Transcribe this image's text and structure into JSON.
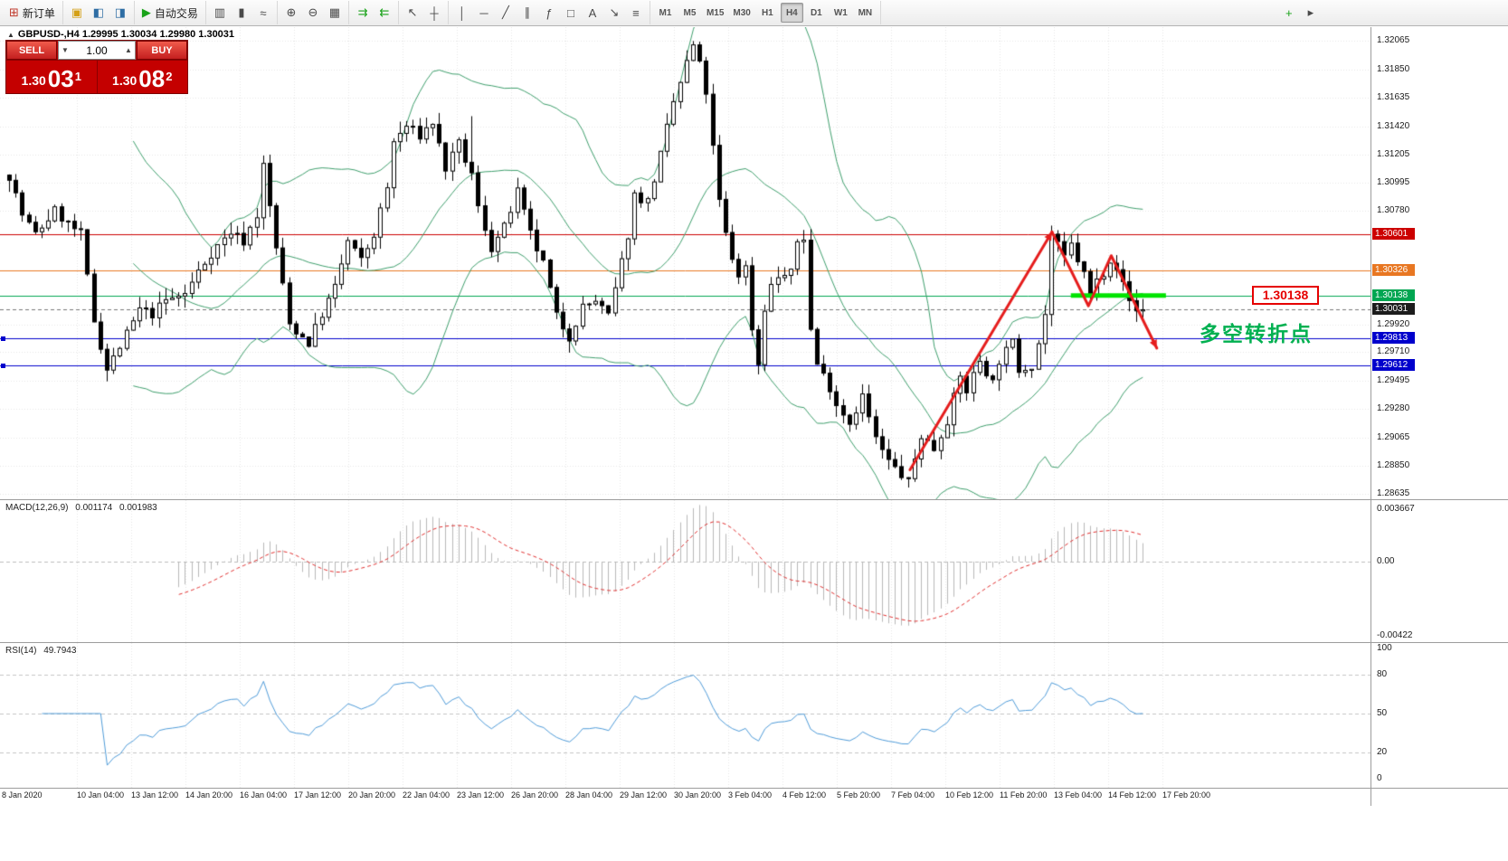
{
  "icons": {
    "collapse": "▲",
    "volume_up": "▲",
    "volume_down": "▼"
  },
  "toolbar": {
    "groups": [
      {
        "name": "group-trade",
        "items": [
          {
            "name": "new-order-button",
            "glyph": "⊞",
            "glyph_color": "#c0392b",
            "label": "新订单"
          }
        ]
      },
      {
        "name": "group-panels",
        "items": [
          {
            "name": "metaeditor-button",
            "glyph": "▣",
            "glyph_color": "#d4a017"
          },
          {
            "name": "market-watch-button",
            "glyph": "◧",
            "glyph_color": "#2e6da4"
          },
          {
            "name": "data-window-button",
            "glyph": "◨",
            "glyph_color": "#2e6da4"
          }
        ]
      },
      {
        "name": "group-autotrading",
        "items": [
          {
            "name": "autotrading-button",
            "glyph": "▶",
            "glyph_color": "#1aa31a",
            "label": "自动交易"
          }
        ]
      },
      {
        "name": "group-chart-type",
        "items": [
          {
            "name": "bar-chart-button",
            "glyph": "▥"
          },
          {
            "name": "candlestick-chart-button",
            "glyph": "▮"
          },
          {
            "name": "line-chart-button",
            "glyph": "≈"
          }
        ]
      },
      {
        "name": "group-zoom",
        "items": [
          {
            "name": "zoom-in-button",
            "glyph": "⊕"
          },
          {
            "name": "zoom-out-button",
            "glyph": "⊖"
          },
          {
            "name": "tile-windows-button",
            "glyph": "▦"
          }
        ]
      },
      {
        "name": "group-scroll",
        "items": [
          {
            "name": "auto-scroll-button",
            "glyph": "⇉",
            "glyph_color": "#1aa31a"
          },
          {
            "name": "chart-shift-button",
            "glyph": "⇇",
            "glyph_color": "#1aa31a"
          }
        ]
      },
      {
        "name": "group-cursor",
        "items": [
          {
            "name": "cursor-button",
            "glyph": "↖"
          },
          {
            "name": "crosshair-button",
            "glyph": "┼"
          }
        ]
      },
      {
        "name": "group-objects",
        "items": [
          {
            "name": "vertical-line-button",
            "glyph": "│"
          },
          {
            "name": "horizontal-line-button",
            "glyph": "─"
          },
          {
            "name": "trendline-button",
            "glyph": "╱"
          },
          {
            "name": "channel-button",
            "glyph": "∥"
          },
          {
            "name": "fibonacci-button",
            "glyph": "ƒ"
          },
          {
            "name": "shapes-button",
            "glyph": "□"
          },
          {
            "name": "text-button",
            "glyph": "A"
          },
          {
            "name": "arrows-button",
            "glyph": "↘"
          },
          {
            "name": "indicators-list-button",
            "glyph": "≡"
          }
        ]
      },
      {
        "name": "group-timeframes",
        "items": [
          {
            "name": "timeframe-m1-button",
            "label": "M1",
            "small": true
          },
          {
            "name": "timeframe-m5-button",
            "label": "M5",
            "small": true
          },
          {
            "name": "timeframe-m15-button",
            "label": "M15",
            "small": true
          },
          {
            "name": "timeframe-m30-button",
            "label": "M30",
            "small": true
          },
          {
            "name": "timeframe-h1-button",
            "label": "H1",
            "small": true
          },
          {
            "name": "timeframe-h4-button",
            "label": "H4",
            "small": true,
            "active": true
          },
          {
            "name": "timeframe-d1-button",
            "label": "D1",
            "small": true
          },
          {
            "name": "timeframe-w1-button",
            "label": "W1",
            "small": true
          },
          {
            "name": "timeframe-mn-button",
            "label": "MN",
            "small": true
          }
        ]
      },
      {
        "name": "group-right",
        "spacer": true,
        "items": [
          {
            "name": "add-toolbar-button",
            "glyph": "+",
            "glyph_color": "#1aa31a"
          },
          {
            "name": "toolbar-more-button",
            "glyph": "▸"
          }
        ]
      }
    ]
  },
  "chart": {
    "header": "GBPUSD-,H4  1.29995 1.30034 1.29980 1.30031"
  },
  "one_click": {
    "sell_label": "SELL",
    "buy_label": "BUY",
    "volume": "1.00",
    "sell": {
      "main": "1.30",
      "pips": "03",
      "sup": "1"
    },
    "buy": {
      "main": "1.30",
      "pips": "08",
      "sup": "2"
    }
  },
  "annotations": {
    "turning_point_text": "多空转折点",
    "price_callout": "1.30138"
  },
  "chart_data": {
    "type": "candlestick",
    "symbol": "GBPUSD-",
    "timeframe": "H4",
    "ohlc": {
      "open": 1.29995,
      "high": 1.30034,
      "low": 1.2998,
      "close": 1.30031
    },
    "bars": 175,
    "y_axis": {
      "top_price": 1.3217,
      "bottom_price": 1.2859,
      "ticks": [
        1.32065,
        1.3185,
        1.31635,
        1.3142,
        1.31205,
        1.30995,
        1.3078,
        1.2992,
        1.2971,
        1.29495,
        1.2928,
        1.29065,
        1.2885,
        1.28635
      ]
    },
    "levels": [
      {
        "name": "resistance-line",
        "price": 1.30601,
        "color": "#cc0000",
        "label_bg": "#cc0000",
        "style": "solid"
      },
      {
        "name": "pivot-line",
        "price": 1.30326,
        "color": "#e87722",
        "label_bg": "#e87722",
        "style": "solid"
      },
      {
        "name": "support-line",
        "price": 1.30138,
        "color": "#00a651",
        "label_bg": "#00a651",
        "style": "solid"
      },
      {
        "name": "bid-line",
        "price": 1.30031,
        "color": "#777777",
        "label_bg": "#1c1c1c",
        "style": "dashed"
      },
      {
        "name": "blue-line-upper",
        "price": 1.29813,
        "color": "#0000cc",
        "label_bg": "#0000cc",
        "style": "solid"
      },
      {
        "name": "blue-line-lower",
        "price": 1.29612,
        "color": "#0000cc",
        "label_bg": "#0000cc",
        "style": "solid"
      }
    ],
    "x_labels": [
      "8 Jan 2020",
      "10 Jan 04:00",
      "13 Jan 12:00",
      "14 Jan 20:00",
      "16 Jan 04:00",
      "17 Jan 12:00",
      "20 Jan 20:00",
      "22 Jan 04:00",
      "23 Jan 12:00",
      "26 Jan 20:00",
      "28 Jan 04:00",
      "29 Jan 12:00",
      "30 Jan 20:00",
      "3 Feb 04:00",
      "4 Feb 12:00",
      "5 Feb 20:00",
      "7 Feb 04:00",
      "10 Feb 12:00",
      "11 Feb 20:00",
      "13 Feb 04:00",
      "14 Feb 12:00",
      "17 Feb 20:00"
    ],
    "price_path": [
      [
        0,
        1.3105
      ],
      [
        2,
        1.3075
      ],
      [
        4,
        1.306
      ],
      [
        7,
        1.3078
      ],
      [
        9,
        1.3068
      ],
      [
        11,
        1.306
      ],
      [
        13,
        1.2995
      ],
      [
        15,
        1.2958
      ],
      [
        17,
        1.2975
      ],
      [
        20,
        1.3003
      ],
      [
        22,
        1.3
      ],
      [
        24,
        1.301
      ],
      [
        27,
        1.3015
      ],
      [
        29,
        1.3032
      ],
      [
        31,
        1.3046
      ],
      [
        34,
        1.3062
      ],
      [
        36,
        1.3055
      ],
      [
        38,
        1.3075
      ],
      [
        39,
        1.3112
      ],
      [
        41,
        1.305
      ],
      [
        43,
        1.2992
      ],
      [
        46,
        1.2978
      ],
      [
        48,
        1.3
      ],
      [
        50,
        1.302
      ],
      [
        52,
        1.3055
      ],
      [
        54,
        1.304
      ],
      [
        56,
        1.306
      ],
      [
        58,
        1.3095
      ],
      [
        59,
        1.313
      ],
      [
        61,
        1.3142
      ],
      [
        63,
        1.3135
      ],
      [
        65,
        1.3145
      ],
      [
        67,
        1.311
      ],
      [
        69,
        1.3128
      ],
      [
        71,
        1.3105
      ],
      [
        72,
        1.308
      ],
      [
        74,
        1.305
      ],
      [
        76,
        1.3065
      ],
      [
        78,
        1.3092
      ],
      [
        80,
        1.306
      ],
      [
        82,
        1.3038
      ],
      [
        84,
        1.2998
      ],
      [
        86,
        1.2983
      ],
      [
        88,
        1.3005
      ],
      [
        90,
        1.301
      ],
      [
        92,
        1.2998
      ],
      [
        93,
        1.3018
      ],
      [
        95,
        1.306
      ],
      [
        96,
        1.309
      ],
      [
        98,
        1.3085
      ],
      [
        100,
        1.312
      ],
      [
        102,
        1.316
      ],
      [
        104,
        1.319
      ],
      [
        105,
        1.3203
      ],
      [
        106,
        1.3188
      ],
      [
        107,
        1.3168
      ],
      [
        108,
        1.3125
      ],
      [
        109,
        1.3085
      ],
      [
        110,
        1.306
      ],
      [
        111,
        1.3042
      ],
      [
        112,
        1.303
      ],
      [
        113,
        1.3035
      ],
      [
        114,
        1.299
      ],
      [
        115,
        1.2962
      ],
      [
        116,
        1.3005
      ],
      [
        117,
        1.3021
      ],
      [
        118,
        1.3028
      ],
      [
        120,
        1.303
      ],
      [
        121,
        1.3055
      ],
      [
        122,
        1.3058
      ],
      [
        123,
        1.2988
      ],
      [
        124,
        1.2962
      ],
      [
        126,
        1.2945
      ],
      [
        127,
        1.2932
      ],
      [
        129,
        1.2918
      ],
      [
        131,
        1.2938
      ],
      [
        133,
        1.2905
      ],
      [
        135,
        1.2888
      ],
      [
        137,
        1.2878
      ],
      [
        138,
        1.2872
      ],
      [
        139,
        1.289
      ],
      [
        140,
        1.2908
      ],
      [
        142,
        1.2898
      ],
      [
        144,
        1.292
      ],
      [
        146,
        1.2952
      ],
      [
        147,
        1.2942
      ],
      [
        149,
        1.2965
      ],
      [
        151,
        1.2948
      ],
      [
        152,
        1.2965
      ],
      [
        154,
        1.2978
      ],
      [
        155,
        1.2958
      ],
      [
        157,
        1.2962
      ],
      [
        158,
        1.2978
      ],
      [
        159,
        1.3
      ],
      [
        160,
        1.306
      ],
      [
        162,
        1.3042
      ],
      [
        163,
        1.3052
      ],
      [
        165,
        1.303
      ],
      [
        166,
        1.3012
      ],
      [
        167,
        1.3025
      ],
      [
        168,
        1.3032
      ],
      [
        169,
        1.3042
      ],
      [
        170,
        1.3036
      ],
      [
        171,
        1.3022
      ],
      [
        172,
        1.301
      ],
      [
        173,
        1.3002
      ],
      [
        174,
        1.30031
      ]
    ],
    "trend_lines": [
      {
        "points": [
          [
            138.6,
            1.2882
          ],
          [
            160.4,
            1.3062
          ]
        ],
        "color": "#e51c1c",
        "width": 3,
        "arrow_end": true
      },
      {
        "points": [
          [
            160.4,
            1.3062
          ],
          [
            166.0,
            1.3006
          ],
          [
            169.5,
            1.3044
          ],
          [
            176.5,
            1.2974
          ]
        ],
        "color": "#e51c1c",
        "width": 3,
        "arrow_end": true
      }
    ],
    "support_segment": {
      "price": 1.30138,
      "from_bar": 163.3,
      "to_bar": 177.9,
      "color": "#00e400",
      "width": 5
    },
    "indicators": {
      "bollinger": {
        "period": 20,
        "deviation": 2,
        "color": "#3e9e6c"
      },
      "macd": {
        "label": "MACD(12,26,9)",
        "value_main": "0.001174",
        "value_signal": "0.001983",
        "scale_ticks": [
          "0.003667",
          "0.00",
          "-0.00422"
        ],
        "histogram_color": "#b8b8b8",
        "signal_color": "#e03030"
      },
      "rsi": {
        "label": "RSI(14)",
        "value": "49.7943",
        "scale_ticks": [
          100,
          80,
          50,
          20,
          0
        ],
        "levels": [
          80,
          50,
          20
        ],
        "color": "#4f9bd8"
      }
    }
  }
}
